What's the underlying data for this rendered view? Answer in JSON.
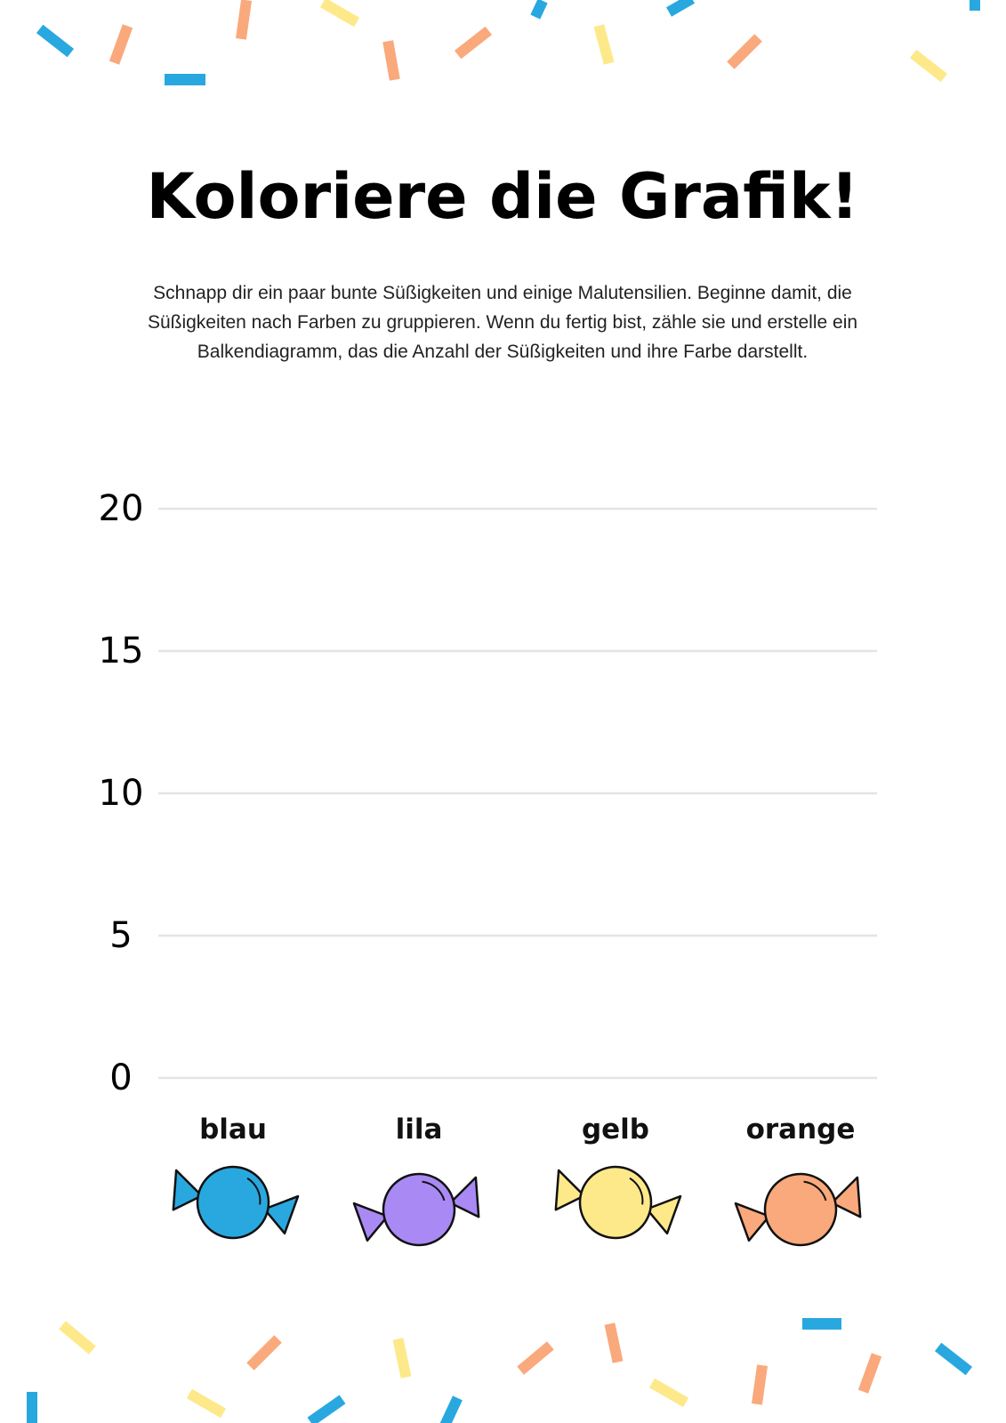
{
  "header": {
    "title": "Koloriere die Grafik!"
  },
  "intro": {
    "lines": [
      "Schnapp dir ein paar bunte Süßigkeiten und einige Malutensilien. Beginne damit, die",
      "Süßigkeiten nach Farben zu gruppieren. Wenn du fertig bist, zähle sie und erstelle ein",
      "Balkendiagramm, das die Anzahl der Süßigkeiten und ihre Farbe darstellt."
    ]
  },
  "chart": {
    "ylim": [
      0,
      20
    ],
    "yticks": [
      0,
      5,
      10,
      15,
      20
    ],
    "grid": true,
    "categories": [
      "blau",
      "lila",
      "gelb",
      "orange"
    ],
    "colors": [
      "#29a8e0",
      "#a98af5",
      "#fde98a",
      "#f9a97c"
    ]
  }
}
